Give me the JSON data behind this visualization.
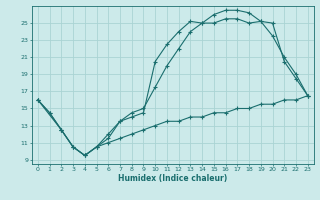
{
  "xlabel": "Humidex (Indice chaleur)",
  "bg_color": "#cceaea",
  "grid_color": "#aad4d4",
  "line_color": "#1a6e6e",
  "xlim": [
    -0.5,
    23.5
  ],
  "ylim": [
    8.5,
    27.0
  ],
  "xticks": [
    0,
    1,
    2,
    3,
    4,
    5,
    6,
    7,
    8,
    9,
    10,
    11,
    12,
    13,
    14,
    15,
    16,
    17,
    18,
    19,
    20,
    21,
    22,
    23
  ],
  "yticks": [
    9,
    11,
    13,
    15,
    17,
    19,
    21,
    23,
    25
  ],
  "line1_x": [
    0,
    1,
    2,
    3,
    4,
    5,
    6,
    7,
    8,
    9,
    10,
    11,
    12,
    13,
    14,
    15,
    16,
    17,
    18,
    19,
    20,
    21,
    22,
    23
  ],
  "line1_y": [
    16,
    14.5,
    12.5,
    10.5,
    9.5,
    10.5,
    11.5,
    13.5,
    14.0,
    14.5,
    20.5,
    22.5,
    24.0,
    25.2,
    25.0,
    26.0,
    26.5,
    26.5,
    26.2,
    25.2,
    25.0,
    20.5,
    18.5,
    16.5
  ],
  "line2_x": [
    0,
    2,
    3,
    4,
    5,
    6,
    7,
    8,
    9,
    10,
    11,
    12,
    13,
    14,
    15,
    16,
    17,
    18,
    19,
    20,
    21,
    22,
    23
  ],
  "line2_y": [
    16,
    12.5,
    10.5,
    9.5,
    10.5,
    12.0,
    13.5,
    14.5,
    15.0,
    17.5,
    20.0,
    22.0,
    24.0,
    25.0,
    25.0,
    25.5,
    25.5,
    25.0,
    25.2,
    23.5,
    21.0,
    19.0,
    16.5
  ],
  "line3_x": [
    0,
    1,
    2,
    3,
    4,
    5,
    6,
    7,
    8,
    9,
    10,
    11,
    12,
    13,
    14,
    15,
    16,
    17,
    18,
    19,
    20,
    21,
    22,
    23
  ],
  "line3_y": [
    16,
    14.5,
    12.5,
    10.5,
    9.5,
    10.5,
    11.0,
    11.5,
    12.0,
    12.5,
    13.0,
    13.5,
    13.5,
    14.0,
    14.0,
    14.5,
    14.5,
    15.0,
    15.0,
    15.5,
    15.5,
    16.0,
    16.0,
    16.5
  ]
}
